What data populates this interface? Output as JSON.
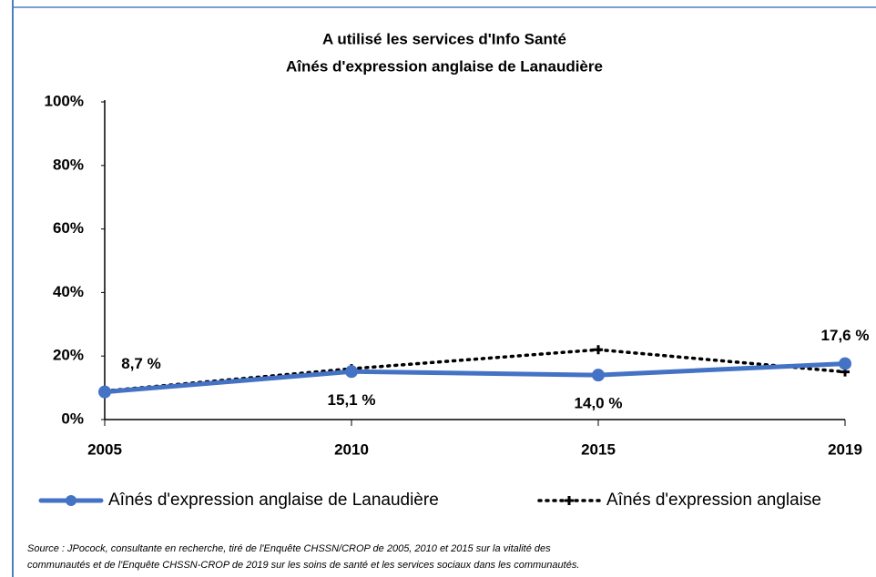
{
  "chart_data": {
    "type": "line",
    "title": "A utilisé les services d'Info Santé",
    "subtitle": "Aînés d'expression anglaise de Lanaudière",
    "categories": [
      "2005",
      "2010",
      "2015",
      "2019"
    ],
    "series": [
      {
        "name": "Aînés d'expression anglaise de Lanaudière",
        "color": "#4472c4",
        "values": [
          8.7,
          15.1,
          14.0,
          17.6
        ],
        "value_labels": [
          "8,7 %",
          "15,1 %",
          "14,0 %",
          "17,6 %"
        ]
      },
      {
        "name": "Aînés d'expression anglaise",
        "color": "#000000",
        "values": [
          9,
          16,
          22,
          15
        ]
      }
    ],
    "ylim": [
      0,
      100
    ],
    "yticks": [
      {
        "value": 0,
        "label": "0%"
      },
      {
        "value": 20,
        "label": "20%"
      },
      {
        "value": 40,
        "label": "40%"
      },
      {
        "value": 60,
        "label": "60%"
      },
      {
        "value": 80,
        "label": "80%"
      },
      {
        "value": 100,
        "label": "100%"
      }
    ],
    "legend": "bottom",
    "source": [
      "Source : JPocock, consultante en recherche, tiré de l'Enquête CHSSN/CROP de 2005, 2010 et 2015 sur la vitalité des",
      "communautés et de l'Enquête CHSSN-CROP de 2019 sur les soins de santé et les services sociaux dans les communautés."
    ]
  }
}
